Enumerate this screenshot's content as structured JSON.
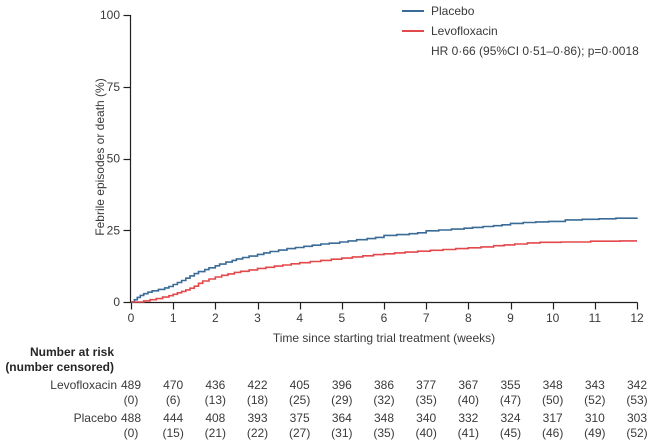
{
  "chart_data": {
    "type": "line",
    "subtype": "kaplan-meier-step",
    "title": "",
    "xlabel": "Time since starting trial treatment (weeks)",
    "ylabel": "Febrile episodes or death (%)",
    "xlim": [
      0,
      12
    ],
    "ylim": [
      0,
      100
    ],
    "xticks": [
      0,
      1,
      2,
      3,
      4,
      5,
      6,
      7,
      8,
      9,
      10,
      11,
      12
    ],
    "yticks": [
      0,
      25,
      50,
      75,
      100
    ],
    "grid": false,
    "legend_position": "inside-top-right",
    "annotation": "HR 0·66 (95%CI 0·51–0·86); p=0·0018",
    "axis_color": "#231f20",
    "series": [
      {
        "name": "Placebo",
        "color": "#3a6b96",
        "points": [
          [
            0,
            0
          ],
          [
            0.08,
            0.8
          ],
          [
            0.15,
            1.6
          ],
          [
            0.22,
            2.3
          ],
          [
            0.3,
            2.9
          ],
          [
            0.4,
            3.4
          ],
          [
            0.5,
            3.9
          ],
          [
            0.65,
            4.4
          ],
          [
            0.8,
            4.9
          ],
          [
            0.9,
            5.4
          ],
          [
            1.0,
            6.1
          ],
          [
            1.1,
            6.8
          ],
          [
            1.2,
            7.5
          ],
          [
            1.3,
            8.3
          ],
          [
            1.4,
            9.1
          ],
          [
            1.5,
            9.9
          ],
          [
            1.6,
            10.6
          ],
          [
            1.75,
            11.3
          ],
          [
            1.85,
            11.9
          ],
          [
            2.0,
            12.6
          ],
          [
            2.1,
            13.2
          ],
          [
            2.25,
            13.9
          ],
          [
            2.4,
            14.5
          ],
          [
            2.5,
            15.0
          ],
          [
            2.65,
            15.5
          ],
          [
            2.8,
            16.0
          ],
          [
            3.0,
            16.6
          ],
          [
            3.15,
            17.1
          ],
          [
            3.3,
            17.6
          ],
          [
            3.5,
            18.1
          ],
          [
            3.7,
            18.6
          ],
          [
            3.9,
            19.0
          ],
          [
            4.1,
            19.4
          ],
          [
            4.3,
            19.8
          ],
          [
            4.5,
            20.2
          ],
          [
            4.7,
            20.5
          ],
          [
            4.95,
            20.9
          ],
          [
            5.15,
            21.3
          ],
          [
            5.35,
            21.7
          ],
          [
            5.6,
            22.1
          ],
          [
            5.8,
            22.5
          ],
          [
            6.0,
            23.2
          ],
          [
            6.3,
            23.5
          ],
          [
            6.6,
            23.8
          ],
          [
            6.8,
            24.1
          ],
          [
            7.0,
            24.8
          ],
          [
            7.3,
            25.1
          ],
          [
            7.6,
            25.4
          ],
          [
            7.9,
            25.7
          ],
          [
            8.1,
            26.0
          ],
          [
            8.35,
            26.3
          ],
          [
            8.6,
            26.6
          ],
          [
            8.8,
            26.9
          ],
          [
            9.0,
            27.4
          ],
          [
            9.3,
            27.7
          ],
          [
            9.6,
            27.9
          ],
          [
            9.9,
            28.1
          ],
          [
            10.3,
            28.6
          ],
          [
            10.7,
            28.8
          ],
          [
            11.1,
            29.0
          ],
          [
            11.5,
            29.2
          ],
          [
            12,
            29.4
          ]
        ]
      },
      {
        "name": "Levofloxacin",
        "color": "#e3484b",
        "points": [
          [
            0,
            0
          ],
          [
            0.3,
            0.4
          ],
          [
            0.45,
            0.8
          ],
          [
            0.6,
            1.2
          ],
          [
            0.75,
            1.7
          ],
          [
            0.9,
            2.2
          ],
          [
            1.0,
            2.7
          ],
          [
            1.1,
            3.2
          ],
          [
            1.2,
            3.7
          ],
          [
            1.3,
            4.2
          ],
          [
            1.4,
            4.8
          ],
          [
            1.5,
            5.5
          ],
          [
            1.6,
            6.5
          ],
          [
            1.7,
            7.3
          ],
          [
            1.85,
            8.0
          ],
          [
            2.0,
            8.7
          ],
          [
            2.15,
            9.3
          ],
          [
            2.3,
            9.8
          ],
          [
            2.45,
            10.3
          ],
          [
            2.6,
            10.7
          ],
          [
            2.8,
            11.2
          ],
          [
            3.0,
            11.7
          ],
          [
            3.2,
            12.1
          ],
          [
            3.4,
            12.5
          ],
          [
            3.6,
            12.9
          ],
          [
            3.8,
            13.3
          ],
          [
            4.0,
            13.7
          ],
          [
            4.25,
            14.1
          ],
          [
            4.5,
            14.5
          ],
          [
            4.75,
            14.9
          ],
          [
            5.0,
            15.3
          ],
          [
            5.25,
            15.7
          ],
          [
            5.5,
            16.1
          ],
          [
            5.75,
            16.5
          ],
          [
            6.0,
            16.8
          ],
          [
            6.25,
            17.1
          ],
          [
            6.5,
            17.4
          ],
          [
            6.8,
            17.7
          ],
          [
            7.1,
            18.0
          ],
          [
            7.4,
            18.3
          ],
          [
            7.7,
            18.6
          ],
          [
            8.0,
            18.9
          ],
          [
            8.3,
            19.2
          ],
          [
            8.6,
            19.6
          ],
          [
            8.85,
            19.9
          ],
          [
            9.1,
            20.2
          ],
          [
            9.4,
            20.6
          ],
          [
            9.7,
            20.8
          ],
          [
            10.2,
            20.9
          ],
          [
            10.9,
            21.2
          ],
          [
            11.6,
            21.3
          ],
          [
            12,
            21.3
          ]
        ]
      }
    ]
  },
  "legend": {
    "items": [
      {
        "label": "Placebo",
        "color": "#3a6b96"
      },
      {
        "label": "Levofloxacin",
        "color": "#e3484b"
      }
    ],
    "annotation": "HR 0·66 (95%CI 0·51–0·86); p=0·0018"
  },
  "risk_table": {
    "header": [
      "Number at risk",
      "(number censored)"
    ],
    "weeks": [
      0,
      1,
      2,
      3,
      4,
      5,
      6,
      7,
      8,
      9,
      10,
      11,
      12
    ],
    "rows": [
      {
        "label": "Levofloxacin",
        "at_risk": [
          489,
          470,
          436,
          422,
          405,
          396,
          386,
          377,
          367,
          355,
          348,
          343,
          342
        ],
        "censored": [
          0,
          6,
          13,
          18,
          25,
          29,
          32,
          35,
          40,
          47,
          50,
          52,
          53
        ]
      },
      {
        "label": "Placebo",
        "at_risk": [
          488,
          444,
          408,
          393,
          375,
          364,
          348,
          340,
          332,
          324,
          317,
          310,
          303
        ],
        "censored": [
          0,
          15,
          21,
          22,
          27,
          31,
          35,
          40,
          41,
          45,
          46,
          49,
          52
        ]
      }
    ]
  }
}
